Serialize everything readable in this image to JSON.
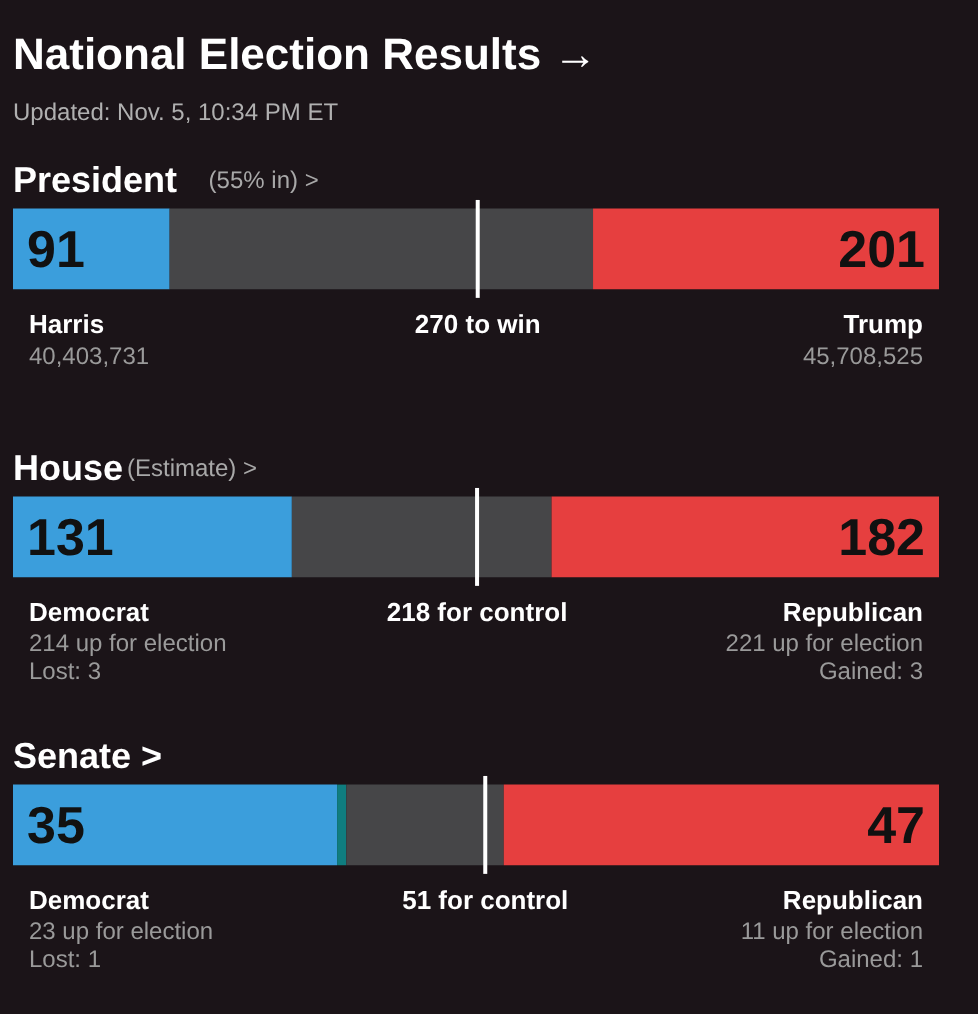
{
  "chart_data": [
    {
      "type": "other",
      "title": "National Election Results →",
      "subtitle": "Updated: Nov. 5, 10:34 PM ET"
    },
    {
      "type": "bar",
      "orientation": "horizontal",
      "stacked": true,
      "title": "President",
      "subtitle": "(55% in) >",
      "categories": [
        null
      ],
      "xlim": [
        0,
        538
      ],
      "tick_labels": false,
      "series": [
        {
          "name": "Harris",
          "color": "#3b9edc",
          "values": [
            91
          ],
          "value_labels": [
            "91"
          ]
        },
        {
          "color": "#464648",
          "values": [
            246
          ],
          "value_labels": [
            null
          ]
        },
        {
          "name": "Trump",
          "color": "#e63f3f",
          "values": [
            201
          ],
          "value_labels": [
            "201"
          ]
        }
      ],
      "ref_lines": [
        {
          "axis": "x",
          "value": 270,
          "label": "270 to win",
          "color": "#ffffff"
        }
      ],
      "annotations": [
        "40,403,731",
        "45,708,525"
      ]
    },
    {
      "type": "bar",
      "orientation": "horizontal",
      "stacked": true,
      "title": "House",
      "subtitle": "(Estimate) >",
      "categories": [
        null
      ],
      "xlim": [
        0,
        435
      ],
      "tick_labels": false,
      "series": [
        {
          "name": "Democrat",
          "color": "#3b9edc",
          "values": [
            131
          ],
          "value_labels": [
            "131"
          ]
        },
        {
          "color": "#464648",
          "values": [
            122
          ],
          "value_labels": [
            null
          ]
        },
        {
          "name": "Republican",
          "color": "#e63f3f",
          "values": [
            182
          ],
          "value_labels": [
            "182"
          ]
        }
      ],
      "ref_lines": [
        {
          "axis": "x",
          "value": 218,
          "label": "218 for control",
          "color": "#ffffff"
        }
      ],
      "annotations": [
        "214 up for election",
        "Lost: 3",
        "221 up for election",
        "Gained: 3"
      ]
    },
    {
      "type": "bar",
      "orientation": "horizontal",
      "stacked": true,
      "title": "Senate >",
      "categories": [
        null
      ],
      "xlim": [
        0,
        100
      ],
      "tick_labels": false,
      "series": [
        {
          "name": "Democrat",
          "color": "#3b9edc",
          "values": [
            35
          ],
          "value_labels": [
            "35"
          ]
        },
        {
          "color": "#0f7d7f",
          "values": [
            1
          ],
          "value_labels": [
            null
          ]
        },
        {
          "color": "#464648",
          "values": [
            17
          ],
          "value_labels": [
            null
          ]
        },
        {
          "name": "Republican",
          "color": "#e63f3f",
          "values": [
            47
          ],
          "value_labels": [
            "47"
          ]
        }
      ],
      "ref_lines": [
        {
          "axis": "x",
          "value": 51,
          "label": "51 for control",
          "color": "#ffffff"
        }
      ],
      "annotations": [
        "23 up for election",
        "Lost: 1",
        "11 up for election",
        "Gained: 1"
      ]
    }
  ]
}
